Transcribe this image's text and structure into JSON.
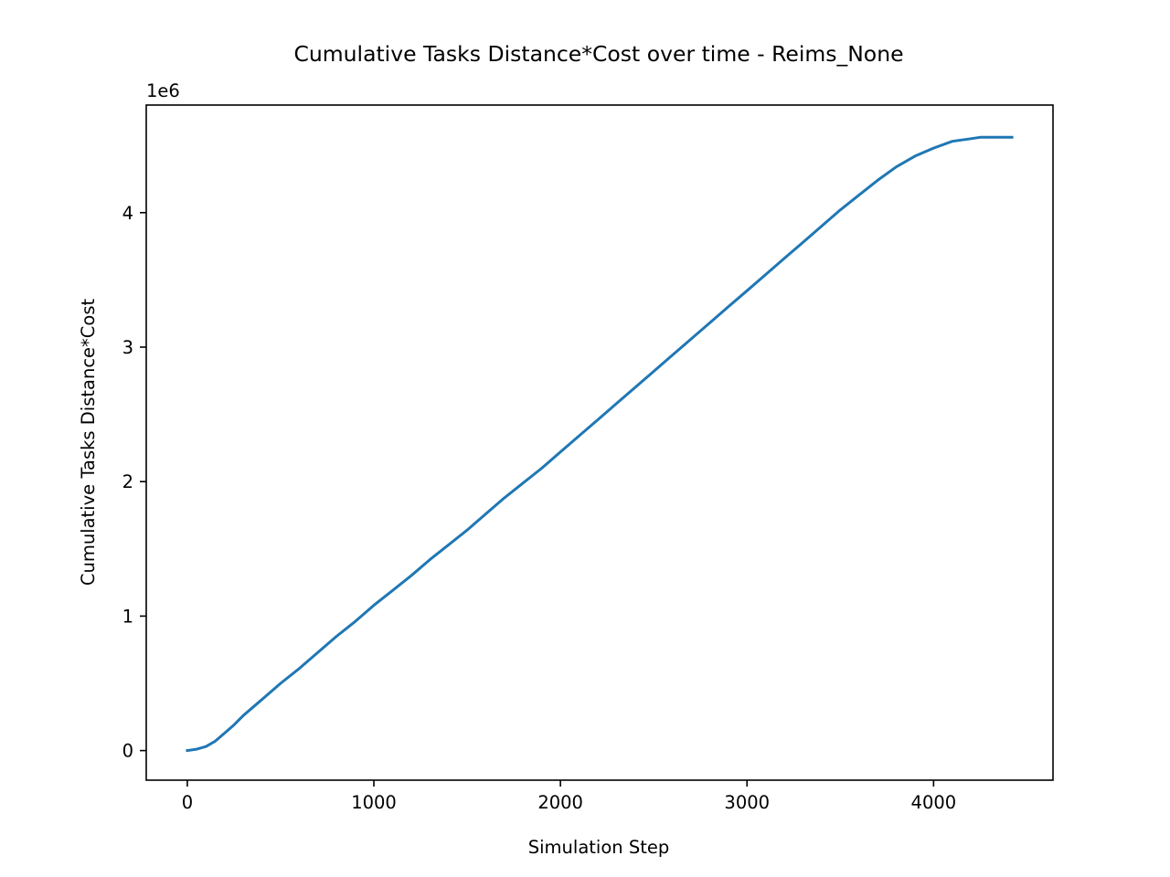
{
  "colors": {
    "series": "#1f77b4",
    "axes": "#000000",
    "background": "#ffffff"
  },
  "chart_data": {
    "type": "line",
    "title": "Cumulative Tasks Distance*Cost over time - Reims_None",
    "xlabel": "Simulation Step",
    "ylabel": "Cumulative Tasks Distance*Cost",
    "y_offset_label": "1e6",
    "xlim": [
      -220,
      4640
    ],
    "ylim": [
      -220000,
      4800000
    ],
    "x_ticks": [
      0,
      1000,
      2000,
      3000,
      4000
    ],
    "x_tick_labels": [
      "0",
      "1000",
      "2000",
      "3000",
      "4000"
    ],
    "y_ticks": [
      0,
      1000000,
      2000000,
      3000000,
      4000000
    ],
    "y_tick_labels": [
      "0",
      "1",
      "2",
      "3",
      "4"
    ],
    "grid": false,
    "legend": "none",
    "series": [
      {
        "x": [
          0,
          50,
          100,
          150,
          200,
          250,
          300,
          400,
          500,
          600,
          700,
          800,
          900,
          1000,
          1100,
          1200,
          1300,
          1400,
          1500,
          1600,
          1700,
          1800,
          1900,
          2000,
          2100,
          2200,
          2300,
          2400,
          2500,
          2600,
          2700,
          2800,
          2900,
          3000,
          3100,
          3200,
          3300,
          3400,
          3500,
          3600,
          3700,
          3800,
          3900,
          4000,
          4100,
          4200,
          4250,
          4300,
          4420
        ],
        "y": [
          0,
          10000,
          30000,
          70000,
          130000,
          190000,
          260000,
          380000,
          500000,
          610000,
          730000,
          850000,
          960000,
          1080000,
          1190000,
          1300000,
          1420000,
          1530000,
          1640000,
          1760000,
          1880000,
          1990000,
          2100000,
          2220000,
          2340000,
          2460000,
          2580000,
          2700000,
          2820000,
          2940000,
          3060000,
          3180000,
          3300000,
          3420000,
          3540000,
          3660000,
          3780000,
          3900000,
          4020000,
          4130000,
          4240000,
          4340000,
          4420000,
          4480000,
          4530000,
          4550000,
          4560000,
          4560000,
          4560000
        ]
      }
    ]
  }
}
